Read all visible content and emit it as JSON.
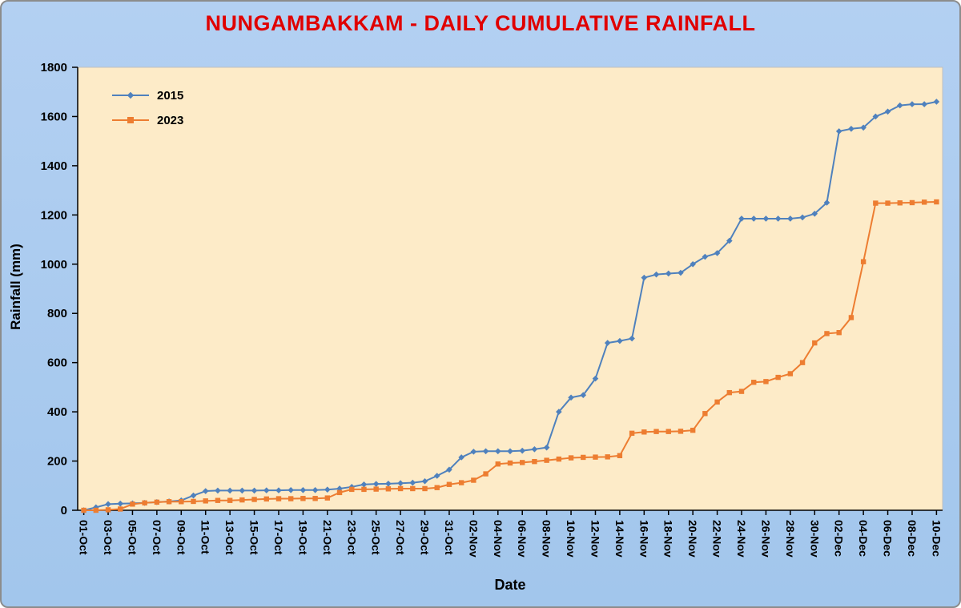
{
  "chart_data": {
    "type": "line",
    "title": "NUNGAMBAKKAM - DAILY CUMULATIVE RAINFALL",
    "xlabel": "Date",
    "ylabel": "Rainfall (mm)",
    "ylim": [
      0,
      1800
    ],
    "ytick_step": 200,
    "xtick_every": 2,
    "grid": false,
    "legend_position": "top-left",
    "colors": {
      "figure_background_top": "#B3D0F2",
      "figure_background_bottom": "#A2C6EC",
      "plot_background": "#FDEBC8",
      "title": "#E00000",
      "axis": "#000000",
      "series_2015": "#4F81BD",
      "series_2023": "#ED7D31"
    },
    "categories": [
      "01-Oct",
      "02-Oct",
      "03-Oct",
      "04-Oct",
      "05-Oct",
      "06-Oct",
      "07-Oct",
      "08-Oct",
      "09-Oct",
      "10-Oct",
      "11-Oct",
      "12-Oct",
      "13-Oct",
      "14-Oct",
      "15-Oct",
      "16-Oct",
      "17-Oct",
      "18-Oct",
      "19-Oct",
      "20-Oct",
      "21-Oct",
      "22-Oct",
      "23-Oct",
      "24-Oct",
      "25-Oct",
      "26-Oct",
      "27-Oct",
      "28-Oct",
      "29-Oct",
      "30-Oct",
      "31-Oct",
      "01-Nov",
      "02-Nov",
      "03-Nov",
      "04-Nov",
      "05-Nov",
      "06-Nov",
      "07-Nov",
      "08-Nov",
      "09-Nov",
      "10-Nov",
      "11-Nov",
      "12-Nov",
      "13-Nov",
      "14-Nov",
      "15-Nov",
      "16-Nov",
      "17-Nov",
      "18-Nov",
      "19-Nov",
      "20-Nov",
      "21-Nov",
      "22-Nov",
      "23-Nov",
      "24-Nov",
      "25-Nov",
      "26-Nov",
      "27-Nov",
      "28-Nov",
      "29-Nov",
      "30-Nov",
      "01-Dec",
      "02-Dec",
      "03-Dec",
      "04-Dec",
      "05-Dec",
      "06-Dec",
      "07-Dec",
      "08-Dec",
      "09-Dec",
      "10-Dec"
    ],
    "series": [
      {
        "name": "2015",
        "color": "#4F81BD",
        "marker": "diamond",
        "values": [
          0,
          12,
          25,
          27,
          28,
          30,
          33,
          36,
          40,
          60,
          78,
          80,
          80,
          80,
          80,
          81,
          81,
          82,
          82,
          82,
          84,
          88,
          95,
          105,
          107,
          108,
          110,
          112,
          118,
          140,
          165,
          215,
          238,
          240,
          240,
          240,
          242,
          248,
          255,
          400,
          458,
          468,
          535,
          680,
          688,
          698,
          945,
          958,
          962,
          965,
          1000,
          1030,
          1045,
          1095,
          1185,
          1185,
          1185,
          1185,
          1185,
          1190,
          1205,
          1250,
          1540,
          1550,
          1555,
          1600,
          1620,
          1645,
          1650,
          1650,
          1660
        ]
      },
      {
        "name": "2023",
        "color": "#ED7D31",
        "marker": "square",
        "values": [
          0,
          0,
          2,
          5,
          25,
          30,
          33,
          35,
          35,
          36,
          38,
          40,
          40,
          42,
          44,
          46,
          47,
          47,
          48,
          48,
          50,
          72,
          85,
          85,
          86,
          87,
          88,
          88,
          88,
          92,
          105,
          112,
          122,
          148,
          188,
          192,
          194,
          198,
          203,
          208,
          213,
          215,
          216,
          217,
          222,
          313,
          318,
          320,
          320,
          321,
          325,
          393,
          440,
          478,
          483,
          520,
          523,
          540,
          555,
          600,
          680,
          718,
          722,
          783,
          1010,
          1248,
          1248,
          1249,
          1250,
          1252,
          1253
        ]
      }
    ]
  }
}
